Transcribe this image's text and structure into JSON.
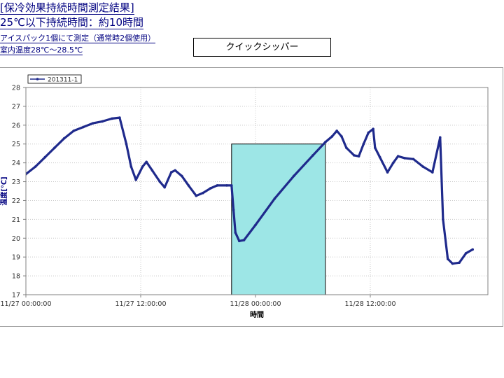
{
  "header": {
    "title_line1": "[保冷効果持続時間測定結果]",
    "title_line2": "25℃以下持続時間：約10時間",
    "note_line1": "アイスパック1個にて測定（通常時2個使用）",
    "note_line2": "室内温度28℃～28.5℃",
    "product_name": "クイックシッパー"
  },
  "colors": {
    "series": "#1f2a8c",
    "highlight_fill": "#9de6e6",
    "grid": "#c8c8c8",
    "title_text": "#000080"
  },
  "chart_data": {
    "type": "line",
    "title": "",
    "xlabel": "時間",
    "ylabel": "温度[℃]",
    "x_unit": "hours since 11/27 00:00:00",
    "xlim": [
      0,
      45
    ],
    "ylim": [
      17,
      28
    ],
    "yticks": [
      17,
      18,
      19,
      20,
      21,
      22,
      23,
      24,
      25,
      26,
      27,
      28
    ],
    "xticks": [
      {
        "x": 0,
        "label": "11/27 00:00:00"
      },
      {
        "x": 12,
        "label": "11/27 12:00:00"
      },
      {
        "x": 24,
        "label": "11/28 00:00:00"
      },
      {
        "x": 36,
        "label": "11/28 12:00:00"
      }
    ],
    "grid": true,
    "legend": "top-left",
    "highlight": {
      "x_start": 21.5,
      "x_end": 31.3,
      "y_start": 17,
      "y_end": 25
    },
    "series": [
      {
        "name": "201311-1",
        "points": [
          [
            0,
            23.4
          ],
          [
            1,
            23.8
          ],
          [
            2,
            24.3
          ],
          [
            3,
            24.8
          ],
          [
            4,
            25.3
          ],
          [
            5,
            25.7
          ],
          [
            6,
            25.9
          ],
          [
            7,
            26.1
          ],
          [
            8,
            26.2
          ],
          [
            9,
            26.35
          ],
          [
            9.8,
            26.4
          ],
          [
            10.5,
            25.0
          ],
          [
            11,
            23.8
          ],
          [
            11.5,
            23.1
          ],
          [
            12.2,
            23.8
          ],
          [
            12.6,
            24.05
          ],
          [
            13.2,
            23.6
          ],
          [
            14,
            23.0
          ],
          [
            14.5,
            22.7
          ],
          [
            15.2,
            23.5
          ],
          [
            15.6,
            23.6
          ],
          [
            16.3,
            23.3
          ],
          [
            17,
            22.8
          ],
          [
            17.8,
            22.25
          ],
          [
            18.5,
            22.4
          ],
          [
            19.3,
            22.65
          ],
          [
            20,
            22.8
          ],
          [
            21,
            22.8
          ],
          [
            21.5,
            22.8
          ],
          [
            21.7,
            21.5
          ],
          [
            21.9,
            20.3
          ],
          [
            22.3,
            19.85
          ],
          [
            22.8,
            19.9
          ],
          [
            24,
            20.7
          ],
          [
            26,
            22.1
          ],
          [
            28,
            23.3
          ],
          [
            30,
            24.4
          ],
          [
            31.3,
            25.1
          ],
          [
            32,
            25.4
          ],
          [
            32.5,
            25.7
          ],
          [
            33,
            25.4
          ],
          [
            33.5,
            24.8
          ],
          [
            34.3,
            24.4
          ],
          [
            34.8,
            24.35
          ],
          [
            35.3,
            25.0
          ],
          [
            35.8,
            25.6
          ],
          [
            36.3,
            25.8
          ],
          [
            36.5,
            24.8
          ],
          [
            37,
            24.3
          ],
          [
            37.8,
            23.5
          ],
          [
            38.4,
            24.0
          ],
          [
            38.9,
            24.35
          ],
          [
            39.6,
            24.25
          ],
          [
            40.5,
            24.2
          ],
          [
            41.5,
            23.8
          ],
          [
            42.5,
            23.5
          ],
          [
            43.3,
            25.35
          ],
          [
            43.6,
            21.0
          ],
          [
            44.1,
            18.9
          ],
          [
            44.6,
            18.65
          ],
          [
            45.3,
            18.7
          ],
          [
            46.0,
            19.2
          ],
          [
            46.7,
            19.4
          ]
        ]
      }
    ]
  }
}
